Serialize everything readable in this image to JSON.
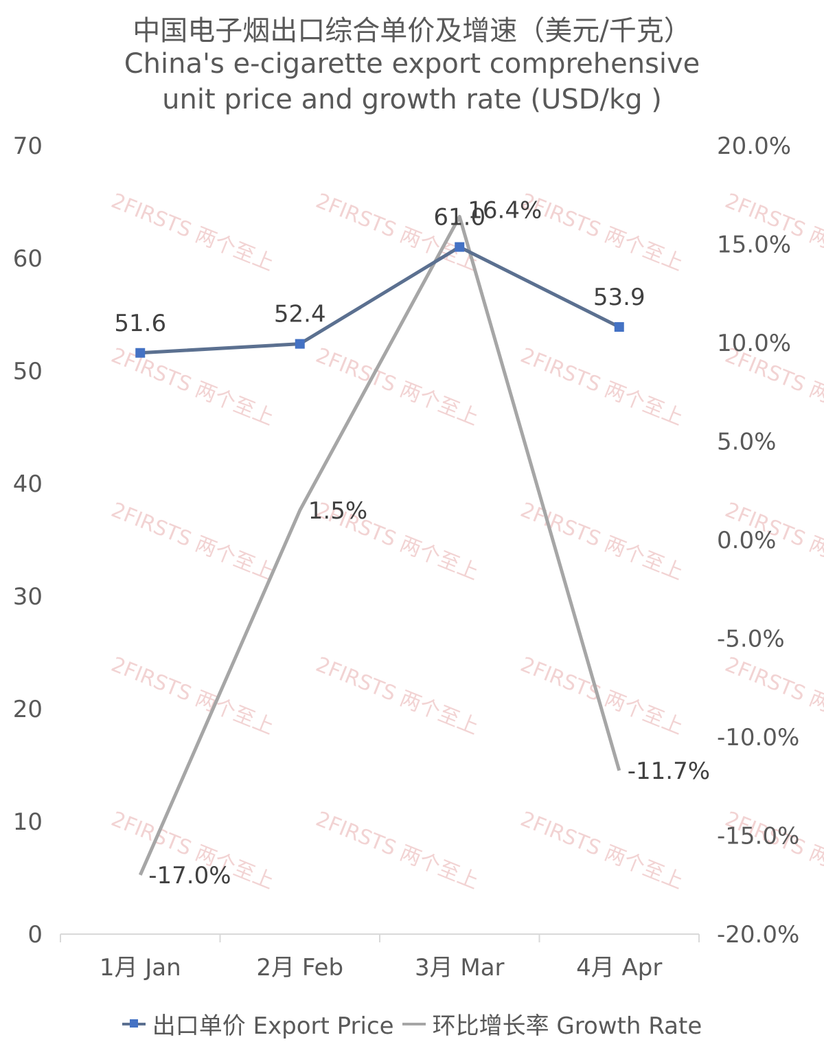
{
  "title_cn": "中国电子烟出口综合单价及增速（美元/千克）",
  "title_en_line1": "China's e-cigarette export comprehensive",
  "title_en_line2": "unit price and growth rate (USD/kg )",
  "chart_data": {
    "type": "line",
    "categories": [
      "1月 Jan",
      "2月 Feb",
      "3月 Mar",
      "4月 Apr"
    ],
    "y_left": {
      "range": [
        0,
        70
      ],
      "ticks": [
        "0",
        "10",
        "20",
        "30",
        "40",
        "50",
        "60",
        "70"
      ]
    },
    "y_right": {
      "range": [
        -20,
        20
      ],
      "ticks": [
        "-20.0%",
        "-15.0%",
        "-10.0%",
        "-5.0%",
        "0.0%",
        "5.0%",
        "10.0%",
        "15.0%",
        "20.0%"
      ]
    },
    "series": [
      {
        "name": "出口单价 Export Price",
        "axis": "left",
        "values": [
          51.6,
          52.4,
          61.0,
          53.9
        ],
        "labels": [
          "51.6",
          "52.4",
          "61.0",
          "53.9"
        ],
        "color": "#5B7090",
        "marker_color": "#4472C4"
      },
      {
        "name": "环比增长率 Growth Rate",
        "axis": "right",
        "values": [
          -17.0,
          1.5,
          16.4,
          -11.7
        ],
        "labels": [
          "-17.0%",
          "1.5%",
          "16.4%",
          "-11.7%"
        ],
        "color": "#A6A6A6"
      }
    ],
    "grid": false,
    "legend_position": "bottom"
  },
  "watermark": "2FIRSTS 两个至上"
}
